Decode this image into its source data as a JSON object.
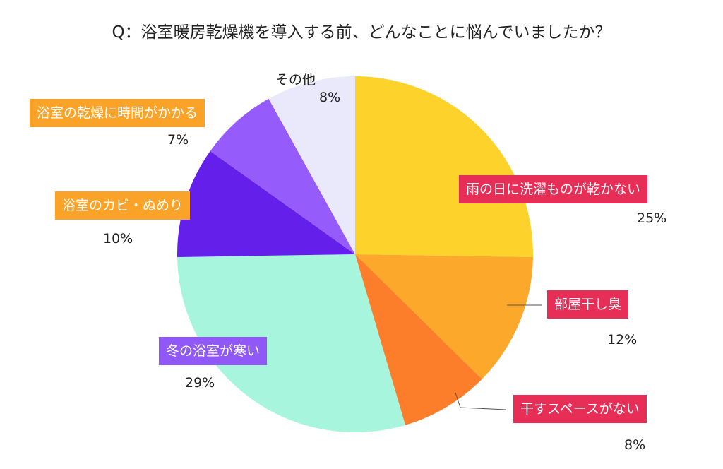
{
  "chart_data": {
    "type": "pie",
    "title": "Q：浴室暖房乾燥機を導入する前、どんなことに悩んでいましたか？",
    "start": "top",
    "direction": "clockwise",
    "slices": [
      {
        "label": "雨の日に洗濯ものが乾かない",
        "value": 25,
        "value_label": "25%",
        "color": "#FDD32B",
        "label_color": "#E62E56"
      },
      {
        "label": "部屋干し臭",
        "value": 12,
        "value_label": "12%",
        "color": "#FCA82B",
        "label_color": "#E62E56"
      },
      {
        "label": "干すスペースがない",
        "value": 8,
        "value_label": "8%",
        "color": "#FC7D2A",
        "label_color": "#E62E56"
      },
      {
        "label": "冬の浴室が寒い",
        "value": 29,
        "value_label": "29%",
        "color": "#A6F5DC",
        "label_color": "#9058F7"
      },
      {
        "label": "浴室のカビ・ぬめり",
        "value": 10,
        "value_label": "10%",
        "color": "#6420EA",
        "label_color": "#FBA328"
      },
      {
        "label": "浴室の乾燥に時間がかかる",
        "value": 7,
        "value_label": "7%",
        "color": "#955BFB",
        "label_color": "#FBA328"
      },
      {
        "label": "その他",
        "value": 8,
        "value_label": "8%",
        "color": "#E9E9FB",
        "label_color": ""
      }
    ]
  }
}
